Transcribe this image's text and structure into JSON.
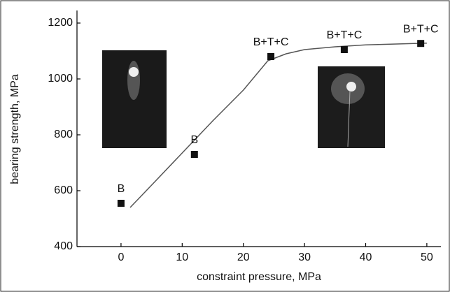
{
  "chart_data": {
    "type": "scatter",
    "x_label": "constraint pressure, MPa",
    "y_label": "bearing strength, MPa",
    "x": [
      0,
      12,
      24.5,
      36.5,
      49
    ],
    "values": [
      555,
      730,
      1080,
      1105,
      1127
    ],
    "point_labels": [
      "B",
      "B",
      "B+T+C",
      "B+T+C",
      "B+T+C"
    ],
    "color": "#111111",
    "curve": {
      "x": [
        1.5,
        5,
        10,
        15,
        20,
        24,
        27,
        30,
        35,
        40,
        50
      ],
      "y": [
        540,
        620,
        735,
        850,
        960,
        1065,
        1090,
        1105,
        1115,
        1122,
        1128
      ]
    },
    "xlim": [
      -7.2,
      52.3
    ],
    "xticks": [
      0,
      10,
      20,
      30,
      40,
      50
    ],
    "ylim": [
      400,
      1245
    ],
    "yticks": [
      400,
      600,
      800,
      1000,
      1200
    ]
  }
}
